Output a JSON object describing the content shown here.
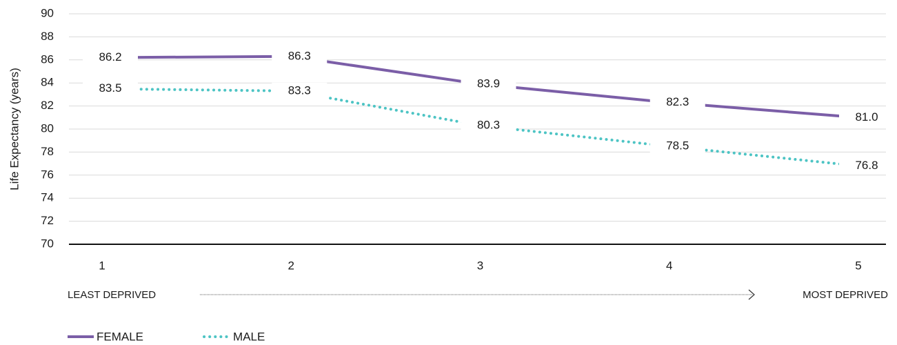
{
  "chart_data": {
    "type": "line",
    "ylabel": "Life Expectancy (years)",
    "categories": [
      "1",
      "2",
      "3",
      "4",
      "5"
    ],
    "series": [
      {
        "name": "FEMALE",
        "color": "#7b5ea7",
        "style": "solid",
        "values": [
          86.2,
          86.3,
          83.9,
          82.3,
          81.0
        ],
        "value_labels": [
          "86.2",
          "86.3",
          "83.9",
          "82.3",
          "81.0"
        ]
      },
      {
        "name": "MALE",
        "color": "#4dc4c4",
        "style": "dotted",
        "values": [
          83.5,
          83.3,
          80.3,
          78.5,
          76.8
        ],
        "value_labels": [
          "83.5",
          "83.3",
          "80.3",
          "78.5",
          "76.8"
        ]
      }
    ],
    "ylim": [
      70,
      90
    ],
    "yticks": [
      70,
      72,
      74,
      76,
      78,
      80,
      82,
      84,
      86,
      88,
      90
    ],
    "grid": true,
    "annotations": [
      "LEAST DEPRIVED",
      "MOST DEPRIVED"
    ],
    "legend": "bottom-left"
  }
}
